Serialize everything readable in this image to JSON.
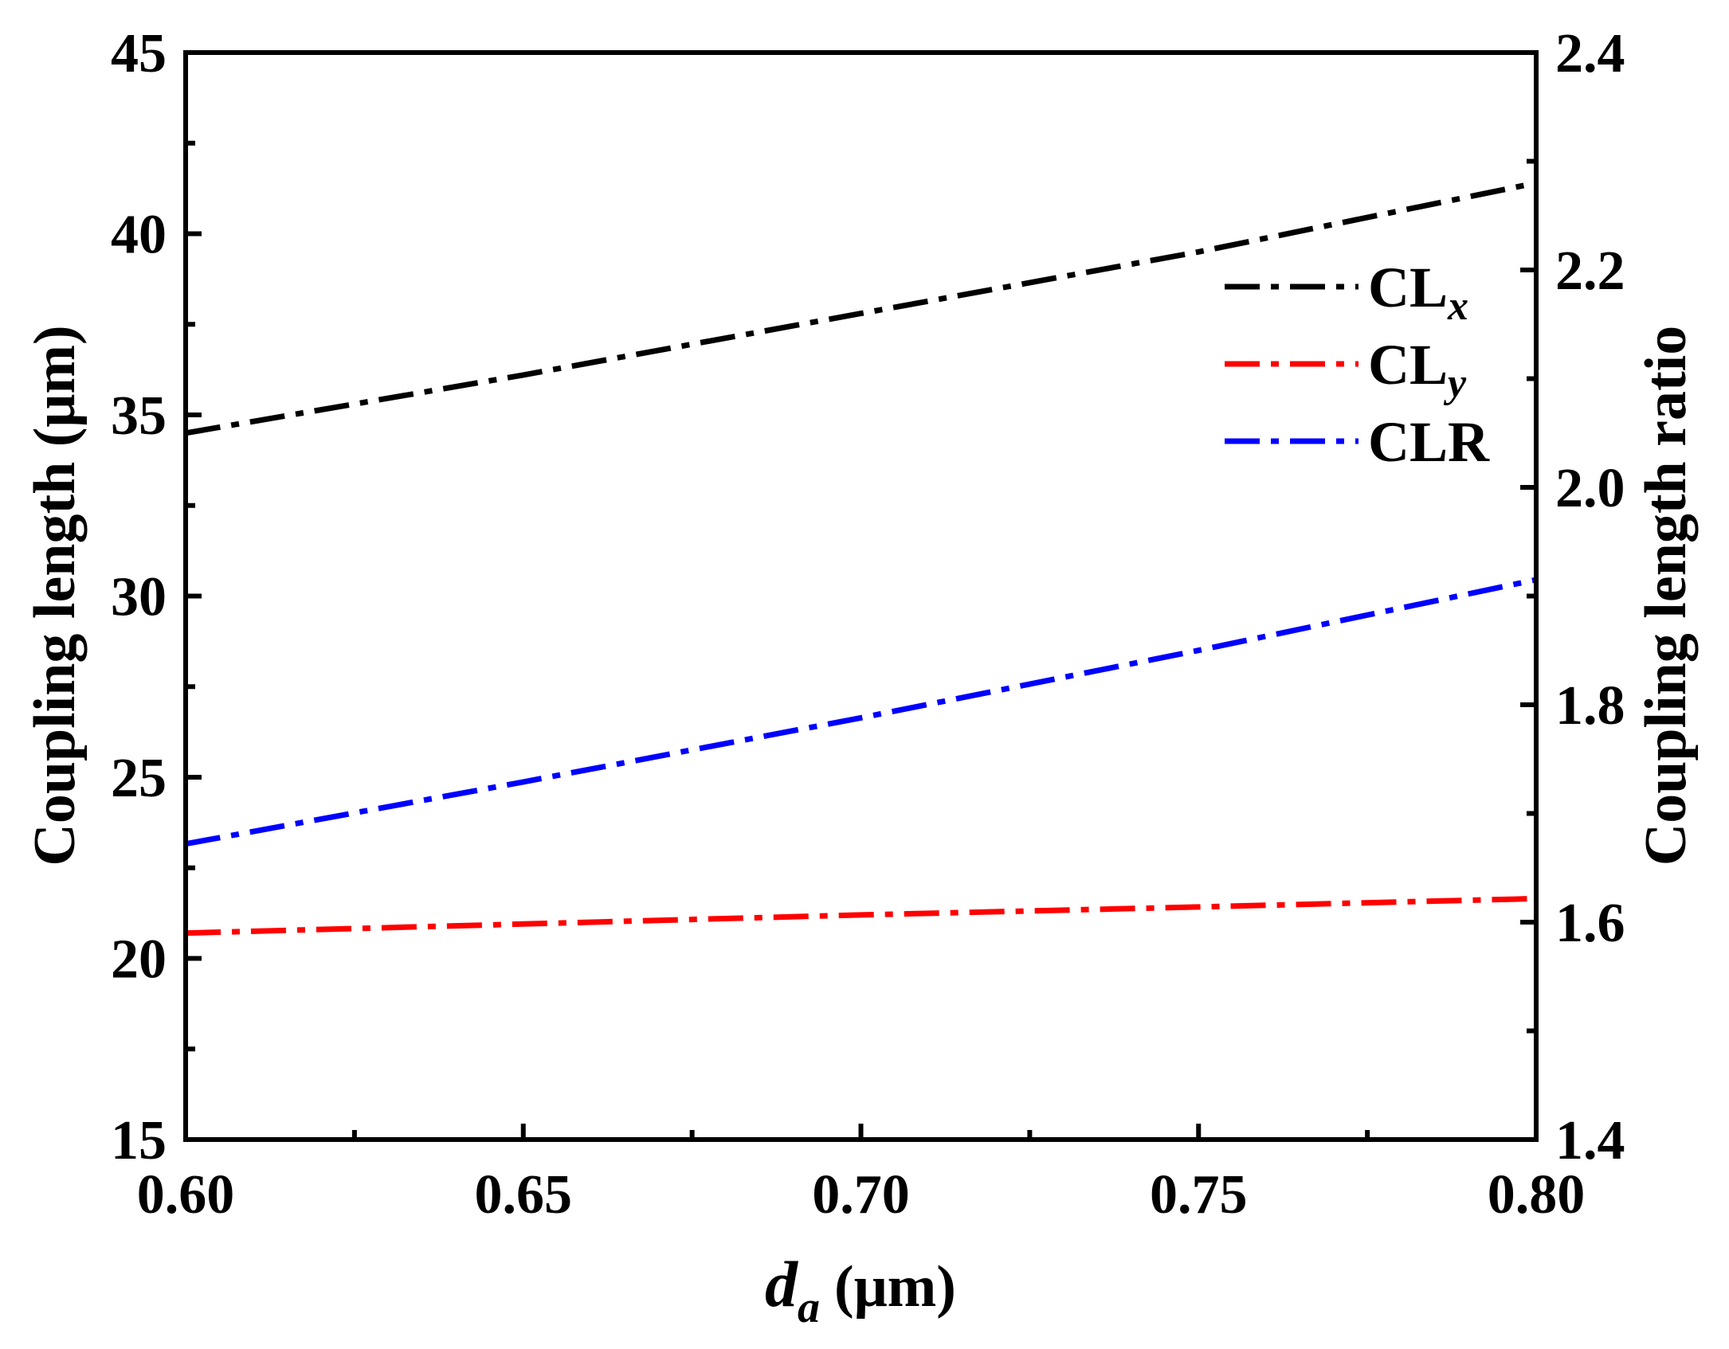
{
  "chart_data": {
    "type": "line",
    "title": "",
    "xlabel": {
      "symbol": "d",
      "subscript": "a",
      "unit": "(μm)"
    },
    "ylabel": "Coupling length (μm)",
    "y2label": "Coupling length ratio",
    "xlim": [
      0.6,
      0.8
    ],
    "ylim": [
      15,
      45
    ],
    "y2lim": [
      1.4,
      2.4
    ],
    "xticks": [
      "0.60",
      "0.65",
      "0.70",
      "0.75",
      "0.80"
    ],
    "yticks": [
      "15",
      "20",
      "25",
      "30",
      "35",
      "40",
      "45"
    ],
    "y2ticks": [
      "1.4",
      "1.6",
      "1.8",
      "2.0",
      "2.2",
      "2.4"
    ],
    "x": [
      0.6,
      0.65,
      0.7,
      0.75,
      0.8
    ],
    "legend_position": "upper-right",
    "series": [
      {
        "name": "CLx",
        "label_main": "CL",
        "label_sub": "x",
        "axis": "left",
        "color": "#000000",
        "values": [
          34.5,
          36.1,
          37.8,
          39.5,
          41.4
        ]
      },
      {
        "name": "CLy",
        "label_main": "CL",
        "label_sub": "y",
        "axis": "left",
        "color": "#ff0000",
        "values": [
          20.7,
          20.95,
          21.2,
          21.42,
          21.65
        ]
      },
      {
        "name": "CLR",
        "label_main": "CLR",
        "label_sub": "",
        "axis": "right",
        "color": "#0000ff",
        "values": [
          1.672,
          1.729,
          1.788,
          1.85,
          1.915
        ]
      }
    ]
  }
}
